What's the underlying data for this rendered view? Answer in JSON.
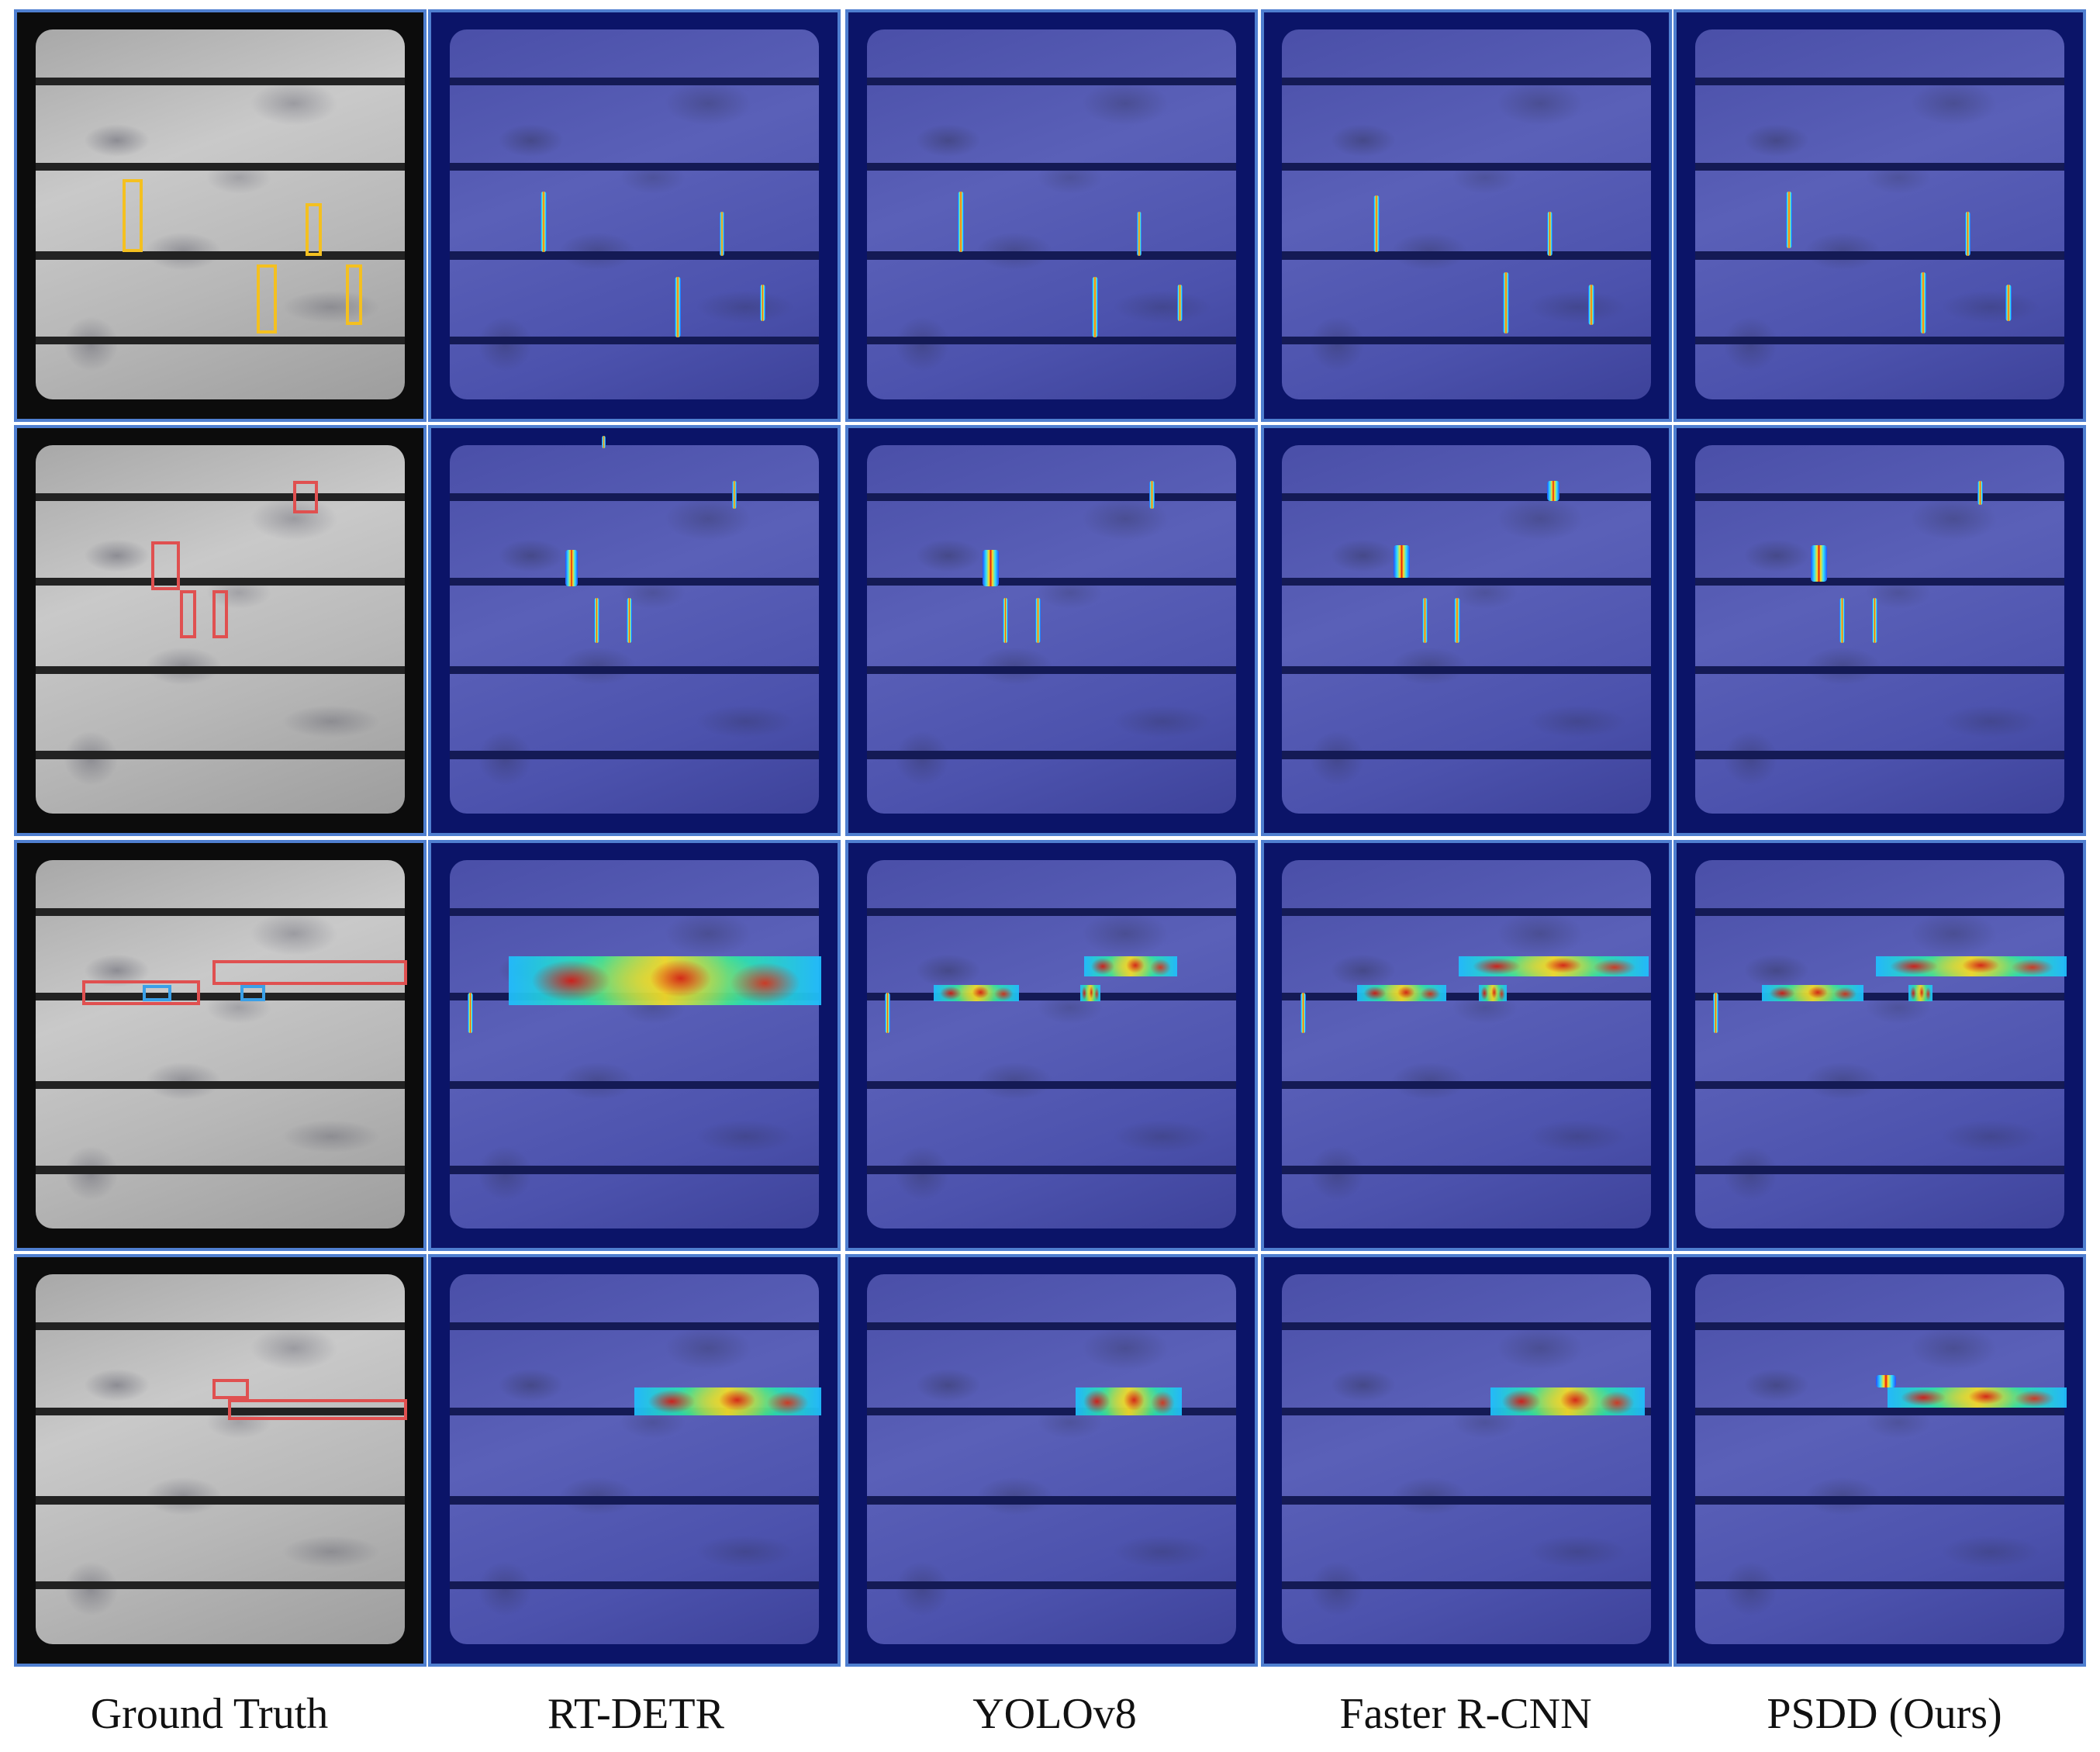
{
  "column_labels": [
    "Ground Truth",
    "RT-DETR",
    "YOLOv8",
    "Faster R-CNN",
    "PSDD (Ours)"
  ],
  "colors": {
    "panel_border": "#4f7fd0",
    "heatmap_background": "#0b1468",
    "ground_truth_box_yellow": "#f4c020",
    "ground_truth_box_red": "#e05050",
    "ground_truth_box_blue": "#3aa0e8"
  },
  "panel_content": {
    "ground_truth": "grayscale electroluminescence image of a solar cell with annotated defect boxes",
    "methods": "blue-tinted solar cell image overlaid with jet-colormap activation heatmaps"
  }
}
